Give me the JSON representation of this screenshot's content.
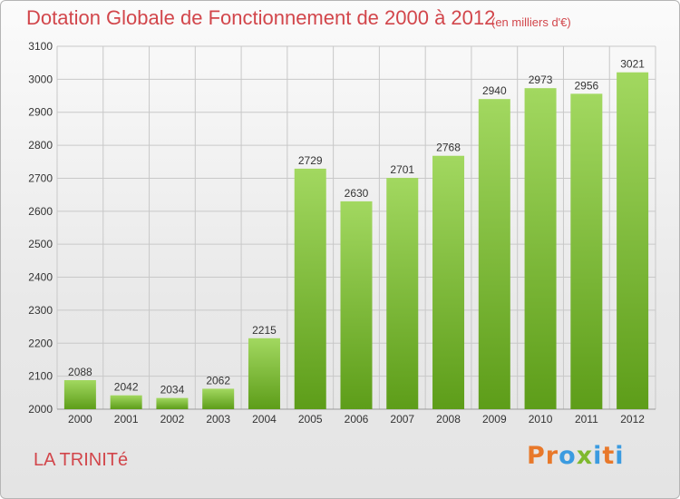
{
  "title": "Dotation Globale de Fonctionnement de 2000 à 2012",
  "subtitle": "(en milliers d'€)",
  "commune": "LA TRINITé",
  "logo": {
    "letters": [
      "P",
      "r",
      "o",
      "x",
      "i",
      "t",
      "i"
    ],
    "colors": [
      "#e8782a",
      "#e8782a",
      "#3b9be0",
      "#7fb92e",
      "#3b9be0",
      "#e8782a",
      "#3b9be0"
    ]
  },
  "colors": {
    "bar_top": "#a2d860",
    "bar_bottom": "#5d9d19",
    "grid": "#c8c8c8",
    "title": "#d2464b"
  },
  "chart_data": {
    "type": "bar",
    "categories": [
      "2000",
      "2001",
      "2002",
      "2003",
      "2004",
      "2005",
      "2006",
      "2007",
      "2008",
      "2009",
      "2010",
      "2011",
      "2012"
    ],
    "values": [
      2088,
      2042,
      2034,
      2062,
      2215,
      2729,
      2630,
      2701,
      2768,
      2940,
      2973,
      2956,
      3021
    ],
    "ylim": [
      2000,
      3100
    ],
    "yticks": [
      2000,
      2100,
      2200,
      2300,
      2400,
      2500,
      2600,
      2700,
      2800,
      2900,
      3000,
      3100
    ],
    "grid": true,
    "title": "Dotation Globale de Fonctionnement de 2000 à 2012",
    "xlabel": "",
    "ylabel": ""
  }
}
